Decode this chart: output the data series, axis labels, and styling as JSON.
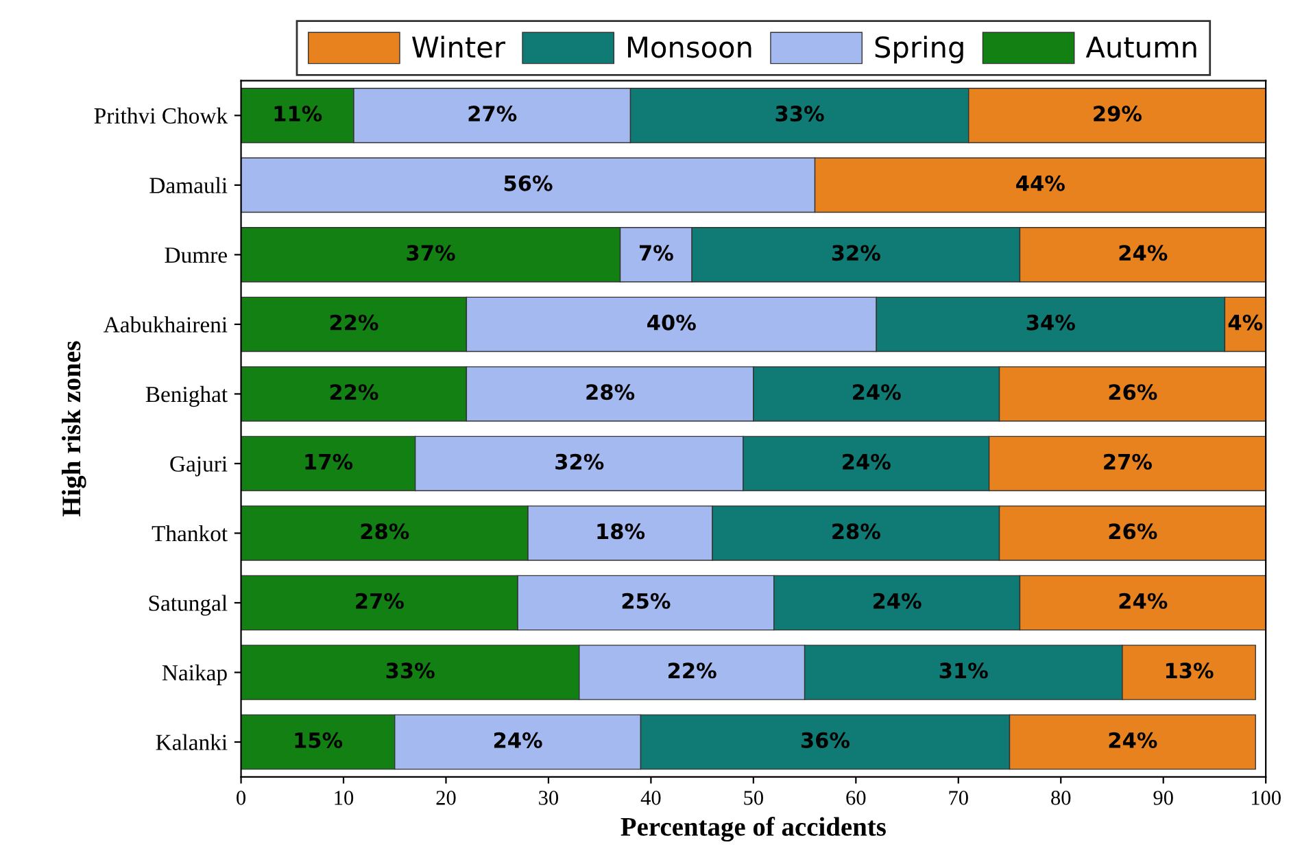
{
  "chart_data": {
    "type": "bar",
    "orientation": "horizontal",
    "stacked": true,
    "xlabel": "Percentage of accidents",
    "ylabel": "High risk zones",
    "categories": [
      "Prithvi Chowk",
      "Damauli",
      "Dumre",
      "Aabukhaireni",
      "Benighat",
      "Gajuri",
      "Thankot",
      "Satungal",
      "Naikap",
      "Kalanki"
    ],
    "series": [
      {
        "name": "Autumn",
        "color": "#138013",
        "values": [
          11,
          0,
          37,
          22,
          22,
          17,
          28,
          27,
          33,
          15
        ],
        "value_labels": [
          "11%",
          null,
          "37%",
          "22%",
          "22%",
          "17%",
          "28%",
          "27%",
          "33%",
          "15%"
        ]
      },
      {
        "name": "Spring",
        "color": "#a3b9ef",
        "values": [
          27,
          56,
          7,
          40,
          28,
          32,
          18,
          25,
          22,
          24
        ],
        "value_labels": [
          "27%",
          "56%",
          "7%",
          "40%",
          "28%",
          "32%",
          "18%",
          "25%",
          "22%",
          "24%"
        ]
      },
      {
        "name": "Monsoon",
        "color": "#0f7b74",
        "values": [
          33,
          0,
          32,
          34,
          24,
          24,
          28,
          24,
          31,
          36
        ],
        "value_labels": [
          "33%",
          null,
          "32%",
          "34%",
          "24%",
          "24%",
          "28%",
          "24%",
          "31%",
          "36%"
        ]
      },
      {
        "name": "Winter",
        "color": "#e8821e",
        "values": [
          29,
          44,
          24,
          4,
          26,
          27,
          26,
          24,
          13,
          24
        ],
        "value_labels": [
          "29%",
          "44%",
          "24%",
          "4%",
          "26%",
          "27%",
          "26%",
          "24%",
          "13%",
          "24%"
        ]
      }
    ],
    "xlim": [
      0,
      100
    ],
    "xticks": [
      0,
      10,
      20,
      30,
      40,
      50,
      60,
      70,
      80,
      90,
      100
    ],
    "grid": false,
    "legend": "top"
  }
}
